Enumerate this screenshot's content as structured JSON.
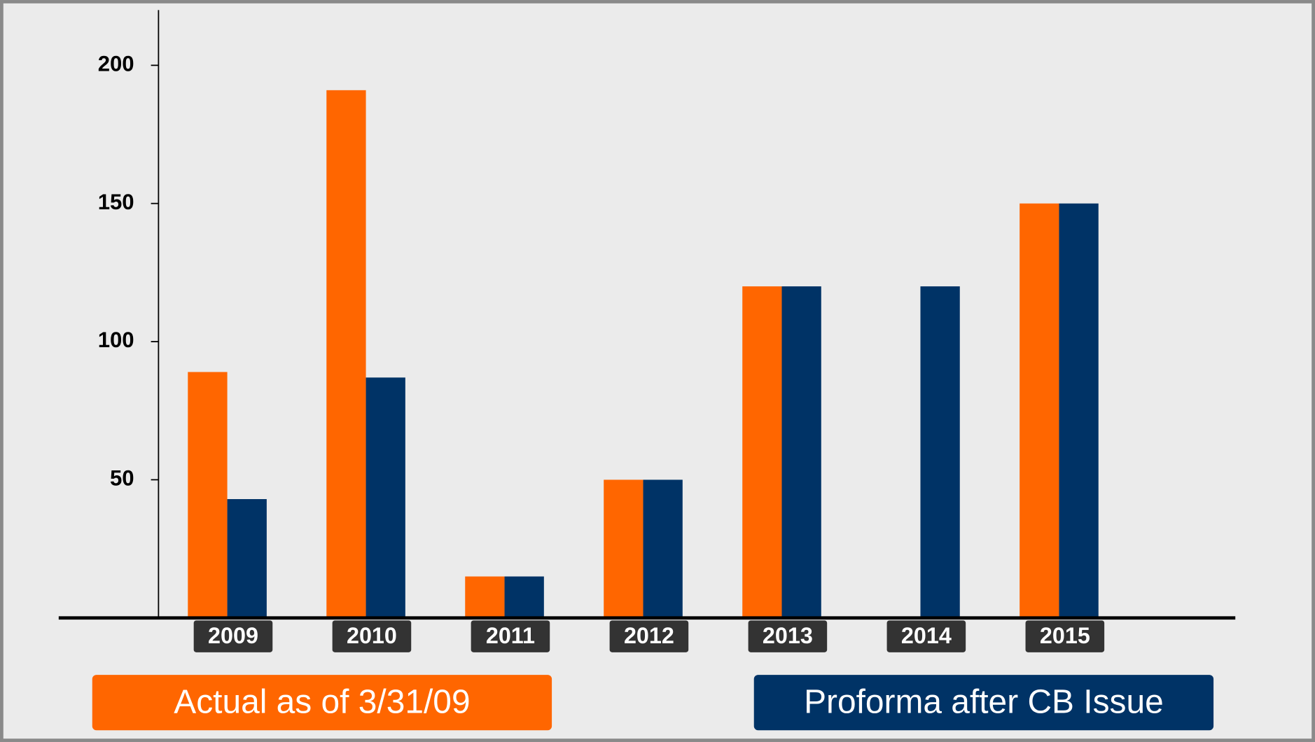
{
  "chart_data": {
    "type": "bar",
    "categories": [
      "2009",
      "2010",
      "2011",
      "2012",
      "2013",
      "2014",
      "2015"
    ],
    "series": [
      {
        "name": "Actual as of 3/31/09",
        "color": "#ff6600",
        "values": [
          89,
          191,
          15,
          50,
          120,
          null,
          150
        ]
      },
      {
        "name": "Proforma after CB Issue",
        "color": "#003366",
        "values": [
          43,
          87,
          15,
          50,
          120,
          120,
          150
        ]
      }
    ],
    "ylim": [
      0,
      220
    ],
    "yticks": [
      50,
      100,
      150,
      200
    ]
  }
}
